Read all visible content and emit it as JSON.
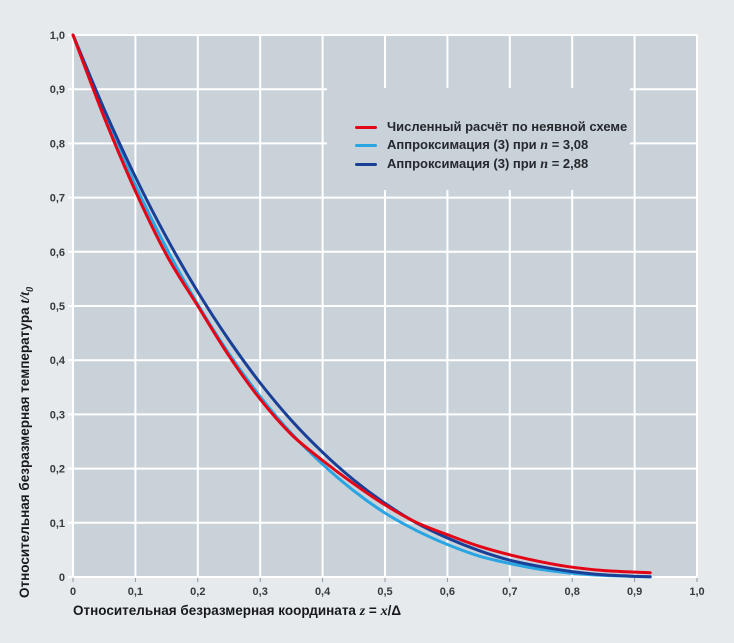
{
  "colors": {
    "page_bg": "#e6eaed",
    "plot_bg": "#c9d2d9",
    "grid": "#ffffff",
    "tick_text": "#363b40",
    "title_text": "#17191c",
    "tick_mark": "#8d979e",
    "series_red": "#e30617",
    "series_light_blue": "#29a5e3",
    "series_dark_blue": "#1a3f97"
  },
  "chart_data": {
    "type": "line",
    "title": "",
    "grid": true,
    "legend_position": "upper right",
    "x_axis": {
      "label": "Относительная безразмерная координата",
      "math_z": "z",
      "math_eq": " = ",
      "math_x": "x",
      "math_rest": "/Δ",
      "range": [
        0,
        1.0
      ],
      "ticks": [
        "0",
        "0,1",
        "0,2",
        "0,3",
        "0,4",
        "0,5",
        "0,6",
        "0,7",
        "0,8",
        "0,9",
        "1,0"
      ]
    },
    "y_axis": {
      "label": "Относительная безразмерная температура",
      "math_t": "t/t",
      "math_sub": "0",
      "range": [
        0,
        1.0
      ],
      "ticks": [
        "0",
        "0,1",
        "0,2",
        "0,3",
        "0,4",
        "0,5",
        "0,6",
        "0,7",
        "0,8",
        "0,9",
        "1,0"
      ]
    },
    "x": [
      0,
      0.05,
      0.1,
      0.15,
      0.2,
      0.25,
      0.3,
      0.35,
      0.4,
      0.45,
      0.5,
      0.55,
      0.6,
      0.65,
      0.7,
      0.75,
      0.8,
      0.85,
      0.9,
      0.925
    ],
    "series": [
      {
        "name": "Численный расчёт по неявной схеме",
        "legend": {
          "prefix": "Численный расчёт по неявной схеме",
          "var": "",
          "suffix": ""
        },
        "color": "#e30617",
        "values": [
          1.0,
          0.848,
          0.712,
          0.594,
          0.5,
          0.408,
          0.328,
          0.263,
          0.215,
          0.172,
          0.133,
          0.101,
          0.078,
          0.057,
          0.041,
          0.028,
          0.018,
          0.012,
          0.009,
          0.008
        ]
      },
      {
        "name": "Аппроксимация (3) при n = 3,08",
        "legend": {
          "prefix": "Аппроксимация (3) при ",
          "var": "n",
          "suffix": " = 3,08"
        },
        "color": "#29a5e3",
        "values": [
          1.0,
          0.854,
          0.723,
          0.606,
          0.503,
          0.412,
          0.333,
          0.265,
          0.208,
          0.159,
          0.118,
          0.086,
          0.06,
          0.039,
          0.025,
          0.014,
          0.007,
          0.003,
          0.001,
          0.0004
        ]
      },
      {
        "name": "Аппроксимация (3) при n = 2,88",
        "legend": {
          "prefix": "Аппроксимация (3) при ",
          "var": "n",
          "suffix": " = 2,88"
        },
        "color": "#1a3f97",
        "values": [
          1.0,
          0.863,
          0.738,
          0.626,
          0.526,
          0.437,
          0.358,
          0.289,
          0.23,
          0.179,
          0.136,
          0.1,
          0.072,
          0.049,
          0.031,
          0.019,
          0.01,
          0.004,
          0.0013,
          0.0006
        ]
      }
    ]
  }
}
